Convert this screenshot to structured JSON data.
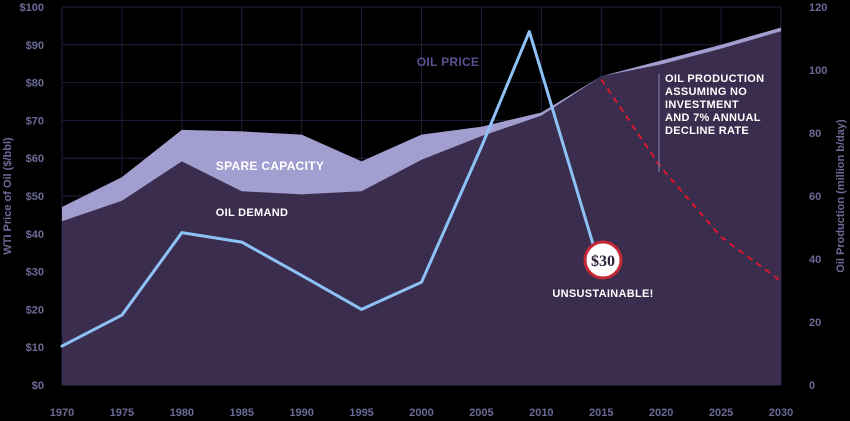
{
  "chart_data": {
    "type": "area",
    "x": [
      1970,
      1975,
      1980,
      1985,
      1990,
      1995,
      2000,
      2005,
      2010,
      2015,
      2020,
      2025,
      2030
    ],
    "ylabel_left": "WTI Price of Oil ($/bbl)",
    "ylabel_right": "Oil Production (million b/day)",
    "y_left_ticks": [
      "$0",
      "$10",
      "$20",
      "$30",
      "$40",
      "$50",
      "$60",
      "$70",
      "$80",
      "$90",
      "$100"
    ],
    "y_right_ticks": [
      "0",
      "20",
      "40",
      "60",
      "80",
      "100",
      "120"
    ],
    "ylim_left": [
      0,
      100
    ],
    "ylim_right": [
      0,
      120
    ],
    "oil_demand": [
      52,
      58.5,
      71,
      61.5,
      60.5,
      61.5,
      71.5,
      79,
      85.5,
      98
    ],
    "oil_supply": [
      56.5,
      66,
      81,
      80.5,
      79.5,
      71,
      79.5,
      82,
      86.5,
      98,
      103,
      108,
      113.5
    ],
    "oil_price": [
      10.3,
      18.5,
      40.3,
      37.8,
      29,
      20,
      27.2,
      63,
      93.5,
      30
    ],
    "oil_price_x": [
      1970,
      1975,
      1980,
      1985,
      1990,
      1995,
      2000,
      2005,
      2009,
      2015
    ],
    "decline_projection": {
      "x": [
        2015,
        2020,
        2025,
        2030
      ],
      "values": [
        97,
        69,
        47,
        33
      ]
    },
    "grid": true,
    "colors": {
      "background": "#000000",
      "demand_fill": "#3a2d4d",
      "spare_capacity_fill": "#a29ed0",
      "oil_price_line": "#8ec2f6",
      "decline_line": "#e8142a",
      "axis_text": "#6b6a96",
      "badge_border": "#c42a36"
    },
    "annotations": {
      "oil_price_label": "OIL PRICE",
      "spare_capacity_label": "SPARE CAPACITY",
      "oil_demand_label": "OIL DEMAND",
      "decline_note_lines": [
        "OIL PRODUCTION",
        "ASSUMING NO",
        "INVESTMENT",
        "AND 7% ANNUAL",
        "DECLINE RATE"
      ],
      "price_badge": "$30",
      "unsustainable_label": "UNSUSTAINABLE!"
    }
  }
}
